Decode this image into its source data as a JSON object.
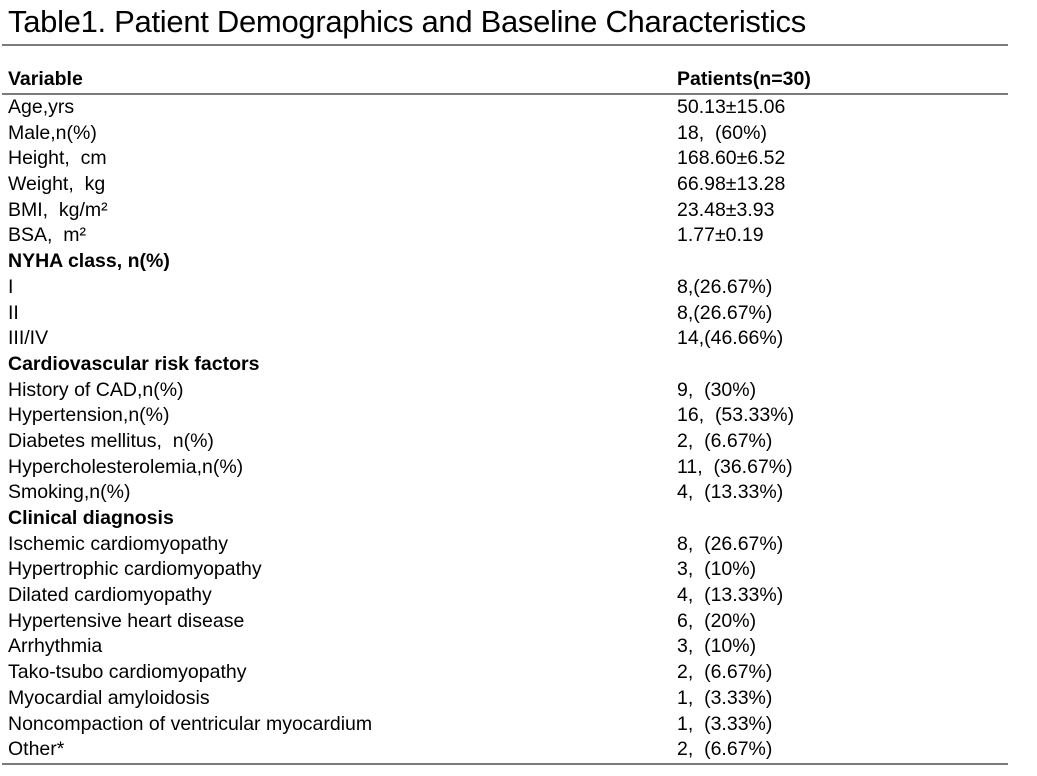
{
  "title": "Table1. Patient Demographics and Baseline Characteristics",
  "table": {
    "header": {
      "variable": "Variable",
      "patients": "Patients(n=30)"
    },
    "rows": [
      {
        "label": "Age,yrs",
        "value": "50.13±15.06",
        "bold": false
      },
      {
        "label": "Male,n(%)",
        "value": "18,  (60%)",
        "bold": false
      },
      {
        "label": "Height,  cm",
        "value": "168.60±6.52",
        "bold": false
      },
      {
        "label": "Weight,  kg",
        "value": "66.98±13.28",
        "bold": false
      },
      {
        "label": "BMI,  kg/m²",
        "value": "23.48±3.93",
        "bold": false
      },
      {
        "label": "BSA,  m²",
        "value": "1.77±0.19",
        "bold": false
      },
      {
        "label": "NYHA class, n(%)",
        "value": "",
        "bold": true
      },
      {
        "label": "I",
        "value": "8,(26.67%)",
        "bold": false
      },
      {
        "label": "II",
        "value": "8,(26.67%)",
        "bold": false
      },
      {
        "label": "III/IV",
        "value": "14,(46.66%)",
        "bold": false
      },
      {
        "label": "Cardiovascular risk factors",
        "value": "",
        "bold": true
      },
      {
        "label": "History of CAD,n(%)",
        "value": "9,  (30%)",
        "bold": false
      },
      {
        "label": "Hypertension,n(%)",
        "value": "16,  (53.33%)",
        "bold": false
      },
      {
        "label": "Diabetes mellitus,  n(%)",
        "value": "2,  (6.67%)",
        "bold": false
      },
      {
        "label": "Hypercholesterolemia,n(%)",
        "value": "11,  (36.67%)",
        "bold": false
      },
      {
        "label": "Smoking,n(%)",
        "value": "4,  (13.33%)",
        "bold": false
      },
      {
        "label": "Clinical diagnosis",
        "value": "",
        "bold": true
      },
      {
        "label": "Ischemic cardiomyopathy",
        "value": "8,  (26.67%)",
        "bold": false
      },
      {
        "label": "Hypertrophic cardiomyopathy",
        "value": "3,  (10%)",
        "bold": false
      },
      {
        "label": "Dilated cardiomyopathy",
        "value": "4,  (13.33%)",
        "bold": false
      },
      {
        "label": "Hypertensive heart disease",
        "value": "6,  (20%)",
        "bold": false
      },
      {
        "label": "Arrhythmia",
        "value": "3,  (10%)",
        "bold": false
      },
      {
        "label": "Tako-tsubo cardiomyopathy",
        "value": "2,  (6.67%)",
        "bold": false
      },
      {
        "label": "Myocardial amyloidosis",
        "value": "1,  (3.33%)",
        "bold": false
      },
      {
        "label": "Noncompaction of ventricular myocardium",
        "value": "1,  (3.33%)",
        "bold": false
      },
      {
        "label": "Other*",
        "value": "2,  (6.67%)",
        "bold": false
      }
    ]
  },
  "colors": {
    "text": "#000000",
    "rule": "#7b7b7b",
    "background": "#ffffff"
  }
}
